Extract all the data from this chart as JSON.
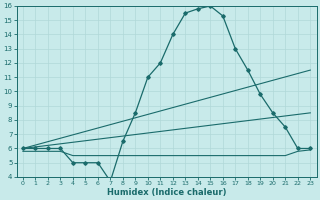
{
  "xlabel": "Humidex (Indice chaleur)",
  "bg_color": "#c8eaea",
  "grid_color": "#b0d8d8",
  "line_color": "#1a6b6b",
  "xlim": [
    -0.5,
    23.5
  ],
  "ylim": [
    4,
    16
  ],
  "xticks": [
    0,
    1,
    2,
    3,
    4,
    5,
    6,
    7,
    8,
    9,
    10,
    11,
    12,
    13,
    14,
    15,
    16,
    17,
    18,
    19,
    20,
    21,
    22,
    23
  ],
  "yticks": [
    4,
    5,
    6,
    7,
    8,
    9,
    10,
    11,
    12,
    13,
    14,
    15,
    16
  ],
  "line1_x": [
    0,
    1,
    2,
    3,
    4,
    5,
    6,
    7,
    8,
    9,
    10,
    11,
    12,
    13,
    14,
    15,
    16,
    17,
    18,
    19,
    20,
    21,
    22,
    23
  ],
  "line1_y": [
    6.0,
    6.0,
    6.0,
    6.0,
    5.0,
    5.0,
    5.0,
    3.7,
    6.5,
    8.5,
    11.0,
    12.0,
    14.0,
    15.5,
    15.8,
    16.0,
    15.3,
    13.0,
    11.5,
    9.8,
    8.5,
    7.5,
    6.0,
    6.0
  ],
  "line2_x": [
    0,
    23
  ],
  "line2_y": [
    6.0,
    11.5
  ],
  "line3_x": [
    0,
    23
  ],
  "line3_y": [
    6.0,
    8.5
  ],
  "line4_x": [
    0,
    1,
    2,
    3,
    4,
    5,
    6,
    7,
    8,
    9,
    10,
    11,
    12,
    13,
    14,
    15,
    16,
    17,
    18,
    19,
    20,
    21,
    22,
    23
  ],
  "line4_y": [
    5.8,
    5.8,
    5.8,
    5.8,
    5.5,
    5.5,
    5.5,
    5.5,
    5.5,
    5.5,
    5.5,
    5.5,
    5.5,
    5.5,
    5.5,
    5.5,
    5.5,
    5.5,
    5.5,
    5.5,
    5.5,
    5.5,
    5.8,
    5.9
  ]
}
